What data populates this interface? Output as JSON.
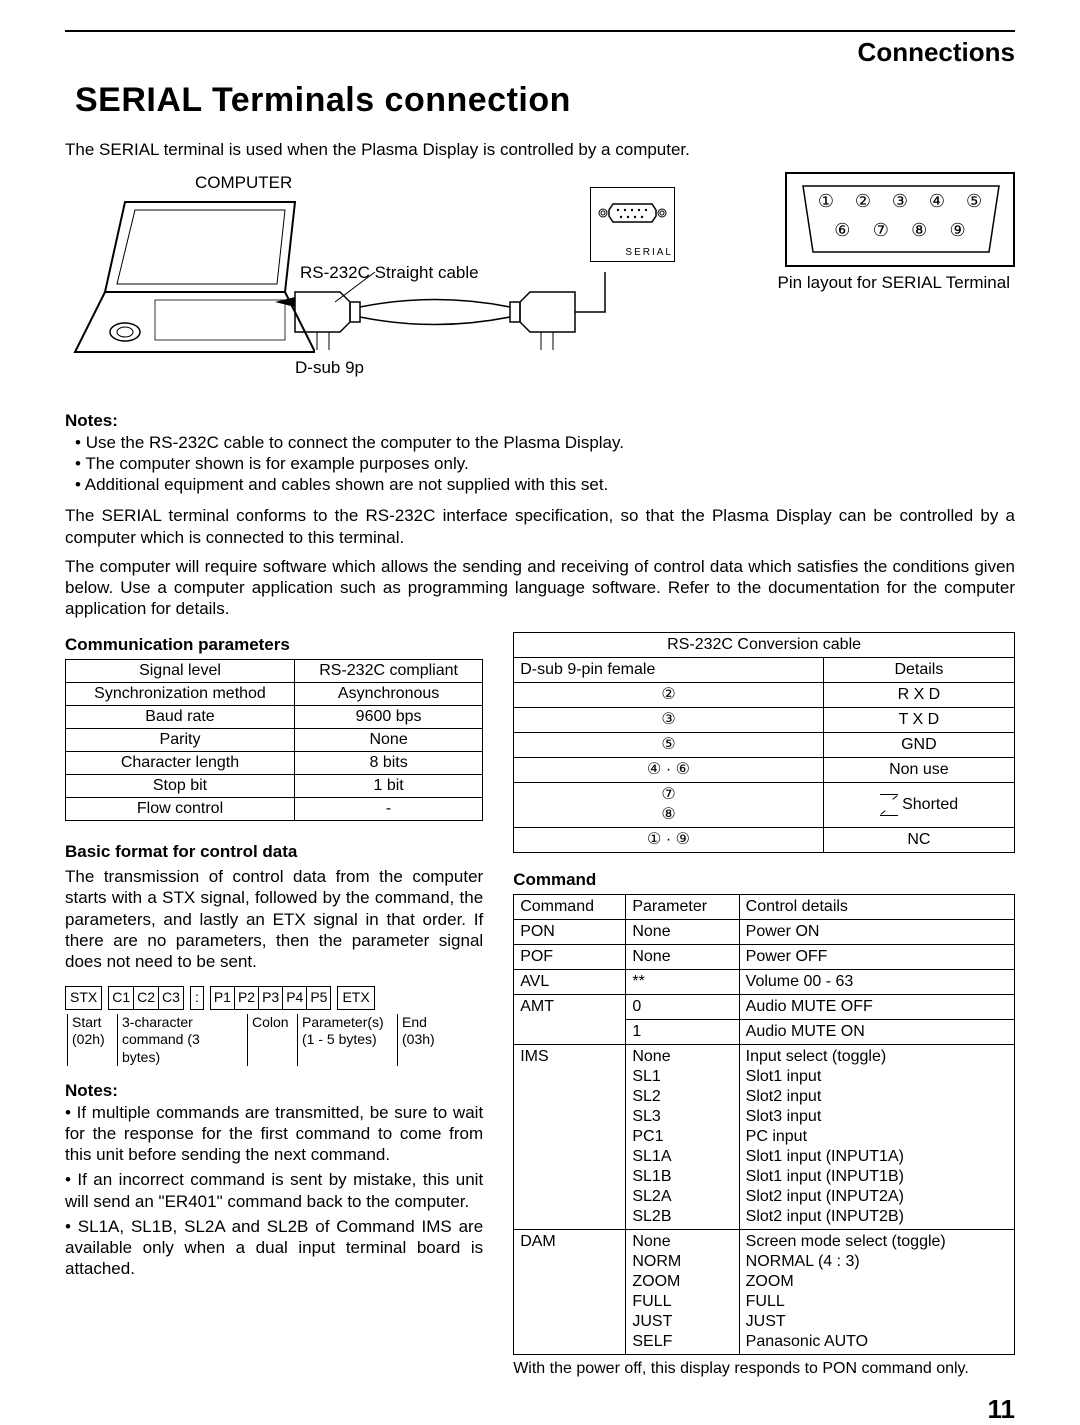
{
  "header": {
    "section": "Connections",
    "title": "SERIAL Terminals connection",
    "page_number": "11"
  },
  "intro": "The SERIAL terminal is used when the Plasma Display is controlled by a computer.",
  "diagram": {
    "computer_label": "COMPUTER",
    "cable_label": "RS-232C Straight cable",
    "dsub_label": "D-sub 9p",
    "port_label": "SERIAL",
    "pin_caption": "Pin layout for SERIAL Terminal",
    "pins_row1": [
      "①",
      "②",
      "③",
      "④",
      "⑤"
    ],
    "pins_row2": [
      "⑥",
      "⑦",
      "⑧",
      "⑨"
    ]
  },
  "notes1": {
    "label": "Notes:",
    "items": [
      "Use the RS-232C cable to connect the computer to the Plasma Display.",
      "The computer shown is for example purposes only.",
      "Additional equipment and cables shown are not supplied with this set."
    ]
  },
  "para1": "The SERIAL terminal conforms to the RS-232C interface specification, so that the Plasma Display can be controlled by a computer which is connected to this terminal.",
  "para2": "The computer will require software which allows the sending and receiving of control data which satisfies the conditions given below. Use a computer application such as programming language software. Refer to the documentation for the computer application for details.",
  "comm": {
    "heading": "Communication parameters",
    "rows": [
      [
        "Signal level",
        "RS-232C compliant"
      ],
      [
        "Synchronization method",
        "Asynchronous"
      ],
      [
        "Baud rate",
        "9600 bps"
      ],
      [
        "Parity",
        "None"
      ],
      [
        "Character length",
        "8 bits"
      ],
      [
        "Stop bit",
        "1 bit"
      ],
      [
        "Flow control",
        "-"
      ]
    ]
  },
  "basic": {
    "heading": "Basic format for control data",
    "text": "The transmission of control data from the computer starts with a STX signal, followed by the command, the parameters, and lastly an ETX signal in that order. If there are no parameters, then the parameter signal does not need to be sent.",
    "boxes": {
      "stx": "STX",
      "c1": "C1",
      "c2": "C2",
      "c3": "C3",
      "colon": ":",
      "p1": "P1",
      "p2": "P2",
      "p3": "P3",
      "p4": "P4",
      "p5": "P5",
      "etx": "ETX"
    },
    "annot": {
      "start1": "Start",
      "start2": "(02h)",
      "cmd1": "3-character",
      "cmd2": "command (3 bytes)",
      "colon": "Colon",
      "param1": "Parameter(s)",
      "param2": "(1 - 5 bytes)",
      "end1": "End",
      "end2": "(03h)"
    }
  },
  "notes2": {
    "label": "Notes:",
    "items": [
      "If multiple commands are transmitted, be sure to wait for the response for the first command to come from this unit before sending the next command.",
      "If an incorrect command is sent by mistake, this unit will send an \"ER401\" command back to the computer.",
      "SL1A, SL1B, SL2A and SL2B of Command IMS are available only when a dual input terminal board is attached."
    ]
  },
  "rs232": {
    "title": "RS-232C Conversion cable",
    "h1": "D-sub 9-pin female",
    "h2": "Details",
    "rows": [
      [
        "②",
        "R X D"
      ],
      [
        "③",
        "T X D"
      ],
      [
        "⑤",
        "GND"
      ],
      [
        "④ · ⑥",
        "Non use"
      ]
    ],
    "shorted_pins": [
      "⑦",
      "⑧"
    ],
    "shorted_label": "Shorted",
    "nc_pins": "① · ⑨",
    "nc_label": "NC"
  },
  "command": {
    "heading": "Command",
    "h1": "Command",
    "h2": "Parameter",
    "h3": "Control details",
    "rows": [
      {
        "cmd": "PON",
        "params": [
          "None"
        ],
        "details": [
          "Power ON"
        ]
      },
      {
        "cmd": "POF",
        "params": [
          "None"
        ],
        "details": [
          "Power OFF"
        ]
      },
      {
        "cmd": "AVL",
        "params": [
          "**"
        ],
        "details": [
          "Volume 00 - 63"
        ]
      },
      {
        "cmd": "AMT",
        "params": [
          "0",
          "1"
        ],
        "details": [
          "Audio MUTE OFF",
          "Audio MUTE ON"
        ]
      },
      {
        "cmd": "IMS",
        "params": [
          "None",
          "SL1",
          "SL2",
          "SL3",
          "PC1",
          "SL1A",
          "SL1B",
          "SL2A",
          "SL2B"
        ],
        "details": [
          "Input select (toggle)",
          "Slot1 input",
          "Slot2 input",
          "Slot3 input",
          "PC input",
          "Slot1 input (INPUT1A)",
          "Slot1 input (INPUT1B)",
          "Slot2 input (INPUT2A)",
          "Slot2 input (INPUT2B)"
        ]
      },
      {
        "cmd": "DAM",
        "params": [
          "None",
          "NORM",
          "ZOOM",
          "FULL",
          "JUST",
          "SELF"
        ],
        "details": [
          "Screen mode select (toggle)",
          "NORMAL (4 : 3)",
          "ZOOM",
          "FULL",
          "JUST",
          "Panasonic AUTO"
        ]
      }
    ],
    "footnote": "With the power off, this display responds to PON command only."
  }
}
